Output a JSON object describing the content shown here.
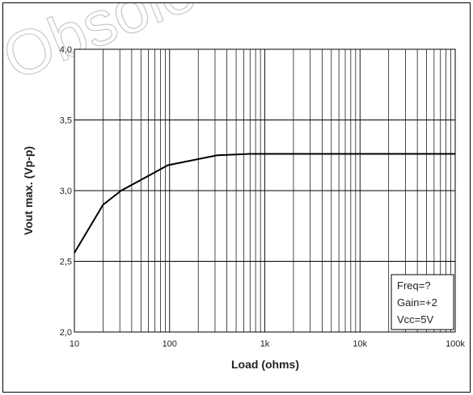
{
  "chart_data": {
    "type": "line",
    "watermark": "Obsolete",
    "xlabel": "Load (ohms)",
    "ylabel": "Vout max. (Vp-p)",
    "x": [
      10,
      20,
      31,
      66,
      96,
      316,
      700,
      100000
    ],
    "series": [
      {
        "color": "#000000",
        "values": [
          2.56,
          2.9,
          3.0,
          3.12,
          3.18,
          3.25,
          3.26,
          3.26
        ]
      }
    ],
    "xscale": "log",
    "xlim": [
      10,
      100000
    ],
    "xticks": [
      10,
      100,
      {
        "value": 1000,
        "label": "1k"
      },
      {
        "value": 10000,
        "label": "10k"
      },
      {
        "value": 100000,
        "label": "100k"
      }
    ],
    "ylim": [
      2,
      4
    ],
    "yticks": [
      {
        "value": 2,
        "label": "2,0"
      },
      {
        "value": 2.5,
        "label": "2,5"
      },
      {
        "value": 3,
        "label": "3,0"
      },
      {
        "value": 3.5,
        "label": "3,5"
      },
      {
        "value": 4,
        "label": "4,0"
      }
    ],
    "grid": true,
    "annotations": [
      "Freq=?",
      "Gain=+2",
      "Vcc=5V"
    ]
  }
}
